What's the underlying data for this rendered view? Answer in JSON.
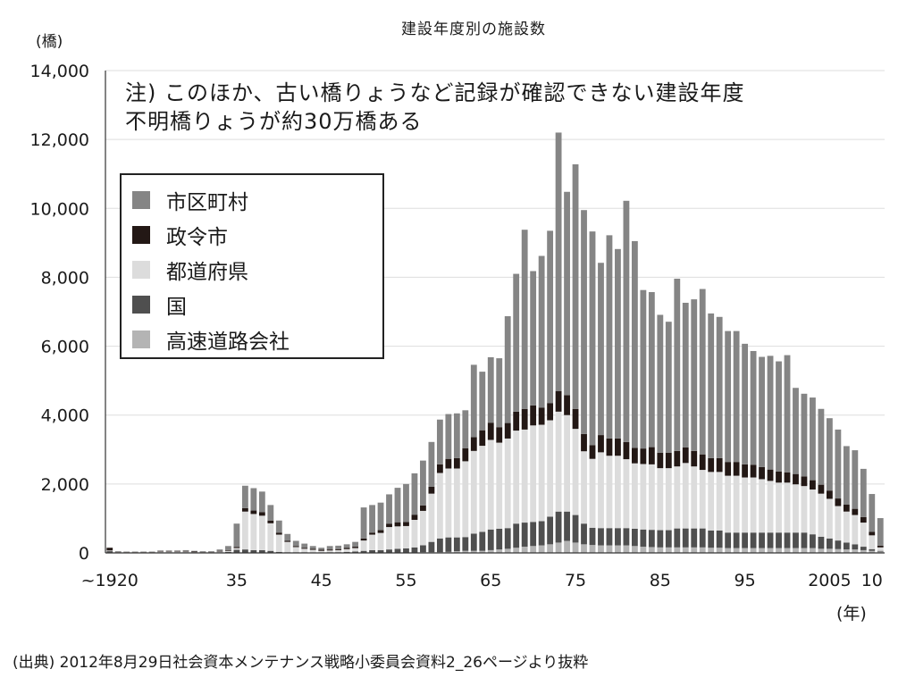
{
  "header": {
    "title": "建設年度別の施設数",
    "y_unit": "(橋)",
    "x_unit": "(年)"
  },
  "note": {
    "line1": "注) このほか、古い橋りょうなど記録が確認できない建設年度",
    "line2": "不明橋りょうが約30万橋ある"
  },
  "source": "(出典) 2012年8月29日社会資本メンテナンス戦略小委員会資料2_26ページより抜粋",
  "colors": {
    "municipal": "#858585",
    "designated_city": "#231815",
    "prefecture": "#dcdcdc",
    "national": "#4f4f4f",
    "expressway": "#b4b4b4"
  },
  "legend": [
    {
      "label": "市区町村",
      "color_key": "municipal"
    },
    {
      "label": "政令市",
      "color_key": "designated_city"
    },
    {
      "label": "都道府県",
      "color_key": "prefecture"
    },
    {
      "label": "国",
      "color_key": "national"
    },
    {
      "label": "高速道路会社",
      "color_key": "expressway"
    }
  ],
  "chart_data": {
    "type": "bar",
    "stacked": true,
    "ylim": [
      0,
      14000
    ],
    "yticks": [
      0,
      2000,
      4000,
      6000,
      8000,
      10000,
      12000,
      14000
    ],
    "ytick_labels": [
      "0",
      "2,000",
      "4,000",
      "6,000",
      "8,000",
      "10,000",
      "12,000",
      "14,000"
    ],
    "grid": "horizontal",
    "legend_position": "top-left",
    "x_tick_labels": [
      {
        "x": 1920,
        "label": "~1920"
      },
      {
        "x": 1935,
        "label": "35"
      },
      {
        "x": 1945,
        "label": "45"
      },
      {
        "x": 1955,
        "label": "55"
      },
      {
        "x": 1965,
        "label": "65"
      },
      {
        "x": 1975,
        "label": "75"
      },
      {
        "x": 1985,
        "label": "85"
      },
      {
        "x": 1995,
        "label": "95"
      },
      {
        "x": 2005,
        "label": "2005"
      },
      {
        "x": 2010,
        "label": "10"
      }
    ],
    "x": [
      1920,
      1921,
      1922,
      1923,
      1924,
      1925,
      1926,
      1927,
      1928,
      1929,
      1930,
      1931,
      1932,
      1933,
      1934,
      1935,
      1936,
      1937,
      1938,
      1939,
      1940,
      1941,
      1942,
      1943,
      1944,
      1945,
      1946,
      1947,
      1948,
      1949,
      1950,
      1951,
      1952,
      1953,
      1954,
      1955,
      1956,
      1957,
      1958,
      1959,
      1960,
      1961,
      1962,
      1963,
      1964,
      1965,
      1966,
      1967,
      1968,
      1969,
      1970,
      1971,
      1972,
      1973,
      1974,
      1975,
      1976,
      1977,
      1978,
      1979,
      1980,
      1981,
      1982,
      1983,
      1984,
      1985,
      1986,
      1987,
      1988,
      1989,
      1990,
      1991,
      1992,
      1993,
      1994,
      1995,
      1996,
      1997,
      1998,
      1999,
      2000,
      2001,
      2002,
      2003,
      2004,
      2005,
      2006,
      2007,
      2008,
      2009,
      2010,
      2011
    ],
    "series": [
      {
        "name": "高速道路会社",
        "color_key": "expressway",
        "values": [
          0,
          0,
          0,
          0,
          0,
          0,
          0,
          0,
          0,
          0,
          0,
          0,
          0,
          0,
          0,
          10,
          10,
          10,
          10,
          10,
          0,
          0,
          0,
          0,
          0,
          0,
          0,
          0,
          0,
          0,
          0,
          0,
          0,
          0,
          0,
          10,
          10,
          20,
          20,
          20,
          30,
          50,
          60,
          60,
          60,
          80,
          100,
          120,
          150,
          180,
          200,
          220,
          250,
          300,
          350,
          300,
          250,
          230,
          220,
          220,
          220,
          220,
          200,
          180,
          170,
          160,
          160,
          160,
          160,
          160,
          160,
          150,
          150,
          140,
          140,
          140,
          140,
          140,
          140,
          140,
          140,
          140,
          140,
          140,
          120,
          120,
          110,
          100,
          100,
          80,
          60,
          40
        ]
      },
      {
        "name": "国",
        "color_key": "national",
        "values": [
          50,
          10,
          10,
          10,
          10,
          10,
          20,
          20,
          20,
          20,
          10,
          10,
          10,
          20,
          30,
          80,
          90,
          70,
          70,
          50,
          30,
          20,
          20,
          20,
          10,
          10,
          20,
          20,
          30,
          40,
          60,
          80,
          80,
          100,
          120,
          120,
          150,
          200,
          300,
          400,
          420,
          400,
          400,
          500,
          550,
          600,
          600,
          600,
          700,
          700,
          700,
          700,
          800,
          900,
          850,
          800,
          600,
          500,
          500,
          500,
          500,
          500,
          500,
          500,
          500,
          500,
          500,
          550,
          550,
          550,
          550,
          500,
          500,
          450,
          450,
          450,
          450,
          450,
          450,
          450,
          450,
          450,
          450,
          400,
          350,
          300,
          250,
          200,
          150,
          100,
          50,
          20
        ]
      },
      {
        "name": "都道府県",
        "color_key": "prefecture",
        "values": [
          20,
          10,
          10,
          10,
          10,
          10,
          20,
          20,
          20,
          20,
          10,
          10,
          10,
          20,
          30,
          50,
          1100,
          1050,
          1000,
          800,
          500,
          300,
          150,
          100,
          80,
          50,
          50,
          60,
          80,
          100,
          300,
          450,
          500,
          650,
          650,
          650,
          800,
          1000,
          1400,
          1900,
          2000,
          2000,
          2200,
          2400,
          2500,
          2600,
          2500,
          2600,
          2700,
          2700,
          2800,
          2800,
          2800,
          2900,
          2800,
          2500,
          2100,
          2000,
          2200,
          2100,
          2100,
          2000,
          1900,
          1900,
          1900,
          1800,
          1800,
          1800,
          1900,
          1800,
          1700,
          1700,
          1700,
          1650,
          1650,
          1600,
          1600,
          1550,
          1500,
          1450,
          1450,
          1400,
          1350,
          1300,
          1250,
          1150,
          1000,
          900,
          850,
          700,
          400,
          100
        ]
      },
      {
        "name": "政令市",
        "color_key": "designated_city",
        "values": [
          80,
          10,
          10,
          10,
          10,
          10,
          20,
          20,
          20,
          20,
          20,
          10,
          10,
          20,
          20,
          30,
          100,
          100,
          100,
          80,
          60,
          30,
          30,
          30,
          30,
          30,
          30,
          30,
          40,
          40,
          60,
          60,
          80,
          100,
          120,
          120,
          150,
          160,
          200,
          250,
          280,
          300,
          380,
          400,
          450,
          500,
          450,
          450,
          550,
          600,
          580,
          500,
          500,
          600,
          580,
          580,
          500,
          400,
          500,
          500,
          500,
          500,
          450,
          450,
          500,
          450,
          450,
          450,
          450,
          450,
          450,
          400,
          400,
          400,
          400,
          380,
          370,
          350,
          330,
          320,
          300,
          300,
          280,
          270,
          260,
          240,
          220,
          200,
          180,
          160,
          100,
          50
        ]
      },
      {
        "name": "市区町村",
        "color_key": "municipal",
        "values": [
          0,
          20,
          10,
          10,
          10,
          10,
          10,
          10,
          10,
          20,
          20,
          20,
          20,
          40,
          120,
          680,
          650,
          650,
          600,
          450,
          350,
          200,
          150,
          120,
          80,
          60,
          100,
          100,
          100,
          140,
          900,
          800,
          800,
          850,
          1000,
          1100,
          1200,
          1300,
          1300,
          1300,
          1300,
          1300,
          1100,
          2100,
          1700,
          1900,
          2000,
          3100,
          4000,
          5200,
          3900,
          4400,
          5000,
          7500,
          5900,
          7100,
          6500,
          6200,
          5000,
          5900,
          5500,
          7000,
          6000,
          4600,
          4500,
          4000,
          3800,
          5000,
          4200,
          4400,
          4800,
          4200,
          4100,
          3800,
          3800,
          3500,
          3300,
          3200,
          3300,
          3200,
          3400,
          2500,
          2400,
          2400,
          2200,
          2100,
          2000,
          1700,
          1700,
          1400,
          1100,
          800
        ]
      }
    ]
  }
}
